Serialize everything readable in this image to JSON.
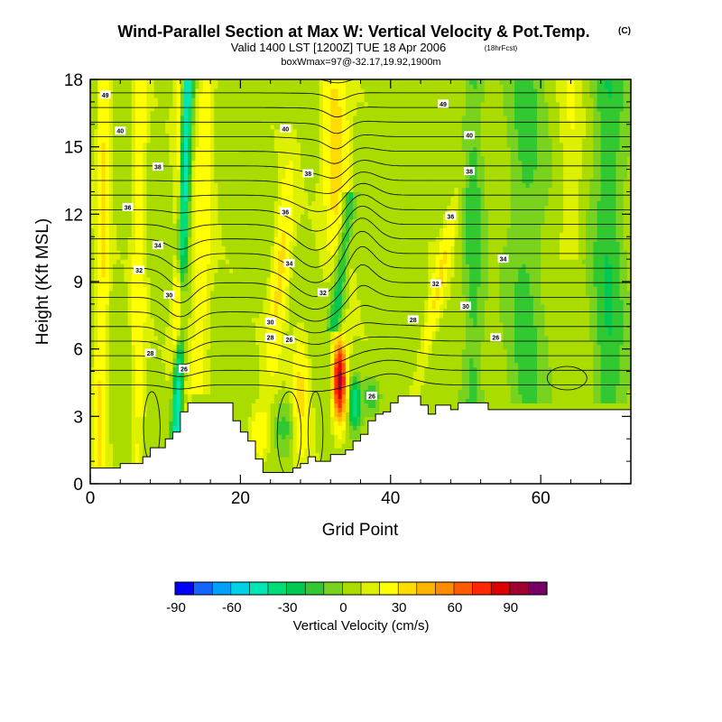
{
  "title": {
    "main": "Wind-Parallel Section at Max W: Vertical Velocity & Pot.Temp.",
    "copyright": "(C)",
    "valid": "Valid 1400 LST [1200Z] TUE 18 Apr 2006",
    "forecast": "(18hrFcst)",
    "box": "boxWmax=97@-32.17,19.92,1900m"
  },
  "chart_data": {
    "type": "heatmap",
    "title": "Wind-Parallel Section at Max W: Vertical Velocity & Pot.Temp.",
    "xlabel": "Grid Point",
    "ylabel": "Height (Kft MSL)",
    "xlim": [
      0,
      72
    ],
    "ylim": [
      0,
      18
    ],
    "x_ticks": [
      0,
      20,
      40,
      60
    ],
    "x_tick_labels": [
      "0",
      "20",
      "40",
      "60"
    ],
    "y_ticks": [
      0,
      3,
      6,
      9,
      12,
      15,
      18
    ],
    "y_tick_labels": [
      "0",
      "3",
      "6",
      "9",
      "12",
      "15",
      "18"
    ],
    "terrain": [
      [
        0,
        0.7
      ],
      [
        3,
        0.7
      ],
      [
        4,
        0.9
      ],
      [
        5,
        0.9
      ],
      [
        6,
        0.9
      ],
      [
        7,
        1.2
      ],
      [
        8,
        1.6
      ],
      [
        9,
        1.6
      ],
      [
        10,
        2.0
      ],
      [
        11,
        2.3
      ],
      [
        12,
        3.2
      ],
      [
        13,
        3.6
      ],
      [
        15,
        3.6
      ],
      [
        18,
        3.6
      ],
      [
        19,
        2.8
      ],
      [
        20,
        2.3
      ],
      [
        21,
        1.9
      ],
      [
        22,
        1.1
      ],
      [
        23,
        0.5
      ],
      [
        26,
        0.5
      ],
      [
        27,
        0.7
      ],
      [
        28,
        0.9
      ],
      [
        29,
        1.2
      ],
      [
        30,
        1.0
      ],
      [
        31,
        1.0
      ],
      [
        32,
        1.3
      ],
      [
        33,
        1.3
      ],
      [
        34,
        1.5
      ],
      [
        35,
        1.9
      ],
      [
        36,
        2.2
      ],
      [
        37,
        2.8
      ],
      [
        38,
        3.1
      ],
      [
        39,
        3.2
      ],
      [
        40,
        3.6
      ],
      [
        41,
        3.9
      ],
      [
        43,
        3.9
      ],
      [
        44,
        3.5
      ],
      [
        45,
        3.1
      ],
      [
        46,
        3.5
      ],
      [
        47,
        3.5
      ],
      [
        48,
        3.3
      ],
      [
        49,
        3.6
      ],
      [
        52,
        3.6
      ],
      [
        53,
        3.3
      ],
      [
        72,
        3.3
      ]
    ],
    "colorbar": {
      "label": "Vertical Velocity (cm/s)",
      "tick_labels": [
        "-90",
        "-60",
        "-30",
        "0",
        "30",
        "60",
        "90"
      ],
      "tick_values": [
        -90,
        -60,
        -30,
        0,
        30,
        60,
        90
      ],
      "bins": [
        -90,
        -75,
        -60,
        -50,
        -40,
        -30,
        -20,
        -10,
        -5,
        0,
        5,
        10,
        20,
        30,
        40,
        50,
        60,
        75,
        90,
        105
      ],
      "colors": [
        "#0000ff",
        "#1464ff",
        "#00a0ff",
        "#00d2e6",
        "#00e6b4",
        "#00dc78",
        "#00c850",
        "#32c832",
        "#78d21e",
        "#aadc00",
        "#dcf000",
        "#ffff00",
        "#ffdc00",
        "#ffb400",
        "#ff8c00",
        "#ff5a00",
        "#ff2800",
        "#dc0000",
        "#a00032",
        "#780064"
      ]
    },
    "theta_contour_labels": [
      {
        "text": "49",
        "x": 2,
        "y": 17.3
      },
      {
        "text": "40",
        "x": 4,
        "y": 15.7
      },
      {
        "text": "38",
        "x": 9,
        "y": 14.1
      },
      {
        "text": "36",
        "x": 5,
        "y": 12.3
      },
      {
        "text": "34",
        "x": 9,
        "y": 10.6
      },
      {
        "text": "32",
        "x": 6.5,
        "y": 9.5
      },
      {
        "text": "30",
        "x": 10.5,
        "y": 8.4
      },
      {
        "text": "28",
        "x": 8,
        "y": 5.8
      },
      {
        "text": "26",
        "x": 12.5,
        "y": 5.1
      },
      {
        "text": "40",
        "x": 26,
        "y": 15.8
      },
      {
        "text": "38",
        "x": 29,
        "y": 13.8
      },
      {
        "text": "36",
        "x": 26,
        "y": 12.1
      },
      {
        "text": "34",
        "x": 26.5,
        "y": 9.8
      },
      {
        "text": "32",
        "x": 31,
        "y": 8.5
      },
      {
        "text": "30",
        "x": 24,
        "y": 7.2
      },
      {
        "text": "28",
        "x": 24,
        "y": 6.5
      },
      {
        "text": "26",
        "x": 26.5,
        "y": 6.4
      },
      {
        "text": "26",
        "x": 37.5,
        "y": 3.9
      },
      {
        "text": "49",
        "x": 47,
        "y": 16.9
      },
      {
        "text": "40",
        "x": 50.5,
        "y": 15.5
      },
      {
        "text": "38",
        "x": 50.5,
        "y": 13.9
      },
      {
        "text": "36",
        "x": 48,
        "y": 11.9
      },
      {
        "text": "34",
        "x": 55,
        "y": 10.0
      },
      {
        "text": "32",
        "x": 46,
        "y": 8.9
      },
      {
        "text": "30",
        "x": 50,
        "y": 7.9
      },
      {
        "text": "28",
        "x": 43,
        "y": 7.3
      },
      {
        "text": "26",
        "x": 54,
        "y": 6.5
      }
    ]
  }
}
